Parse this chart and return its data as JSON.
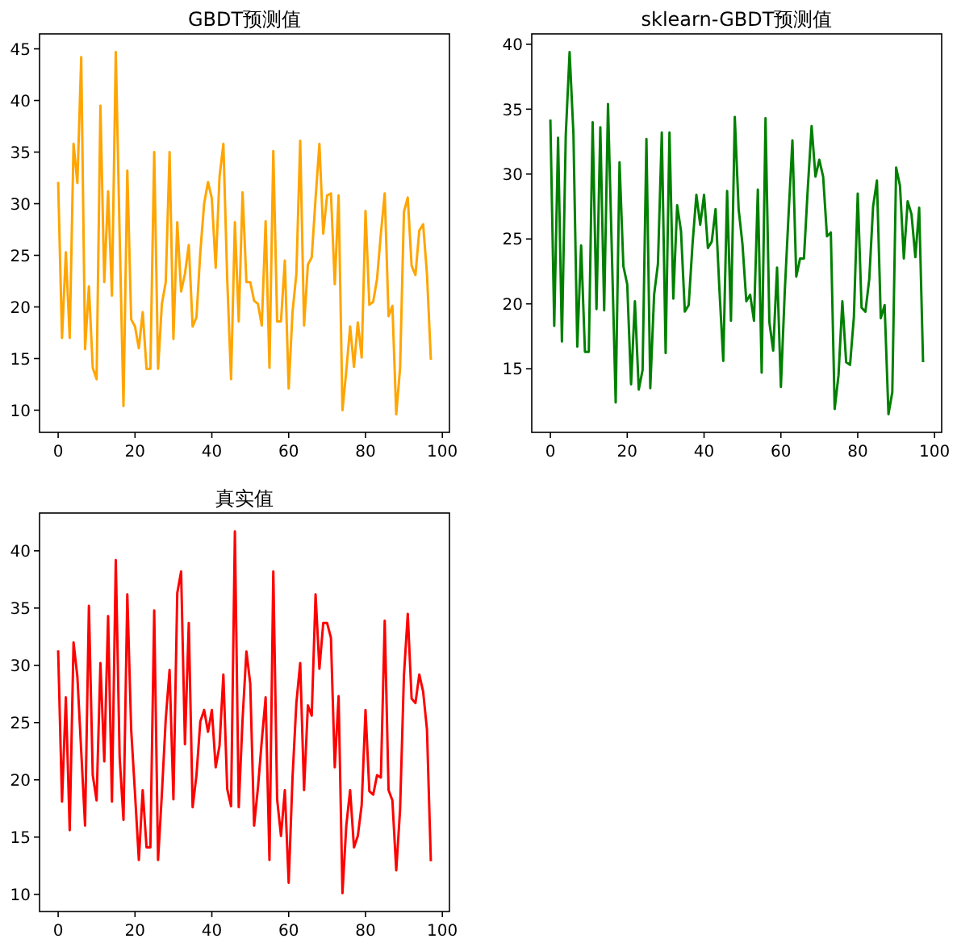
{
  "chart_data": [
    {
      "type": "line",
      "title": "GBDT预测值",
      "x": [
        0,
        1,
        2,
        3,
        4,
        5,
        6,
        7,
        8,
        9,
        10,
        11,
        12,
        13,
        14,
        15,
        16,
        17,
        18,
        19,
        20,
        21,
        22,
        23,
        24,
        25,
        26,
        27,
        28,
        29,
        30,
        31,
        32,
        33,
        34,
        35,
        36,
        37,
        38,
        39,
        40,
        41,
        42,
        43,
        44,
        45,
        46,
        47,
        48,
        49,
        50,
        51,
        52,
        53,
        54,
        55,
        56,
        57,
        58,
        59,
        60,
        61,
        62,
        63,
        64,
        65,
        66,
        67,
        68,
        69,
        70,
        71,
        72,
        73,
        74,
        75,
        76,
        77,
        78,
        79,
        80,
        81,
        82,
        83,
        84,
        85,
        86,
        87,
        88,
        89,
        90,
        91,
        92,
        93,
        94,
        95,
        96,
        97
      ],
      "series": [
        {
          "color": "#ffa500",
          "values": [
            32.0,
            17.0,
            25.3,
            17.0,
            35.8,
            32.0,
            44.2,
            15.9,
            22.0,
            14.1,
            13.0,
            39.5,
            22.4,
            31.2,
            21.1,
            44.7,
            27.0,
            10.4,
            33.2,
            18.8,
            18.1,
            16.0,
            19.5,
            14.0,
            14.0,
            35.0,
            14.0,
            20.3,
            22.4,
            35.0,
            16.9,
            28.2,
            21.5,
            23.2,
            26.0,
            18.1,
            19.0,
            25.3,
            30.0,
            32.1,
            30.5,
            23.8,
            32.6,
            35.8,
            22.7,
            13.0,
            28.2,
            18.6,
            31.1,
            22.4,
            22.4,
            20.6,
            20.3,
            18.2,
            28.3,
            14.1,
            35.1,
            18.6,
            18.6,
            24.5,
            12.1,
            19.5,
            23.2,
            36.1,
            18.2,
            24.1,
            24.8,
            30.5,
            35.8,
            27.1,
            30.8,
            31.0,
            22.2,
            30.8,
            10.0,
            13.8,
            18.1,
            14.2,
            18.5,
            15.1,
            29.3,
            20.2,
            20.5,
            22.7,
            27.1,
            31.0,
            19.1,
            20.1,
            9.6,
            14.1,
            29.2,
            30.6,
            24.0,
            23.1,
            27.4,
            28.0,
            23.2,
            15.0
          ]
        }
      ],
      "xlim": [
        -4.85,
        101.85
      ],
      "ylim": [
        7.85,
        46.45
      ],
      "xticks": [
        0,
        20,
        40,
        60,
        80,
        100
      ],
      "yticks": [
        10,
        15,
        20,
        25,
        30,
        35,
        40,
        45
      ]
    },
    {
      "type": "line",
      "title": "sklearn-GBDT预测值",
      "x": [
        0,
        1,
        2,
        3,
        4,
        5,
        6,
        7,
        8,
        9,
        10,
        11,
        12,
        13,
        14,
        15,
        16,
        17,
        18,
        19,
        20,
        21,
        22,
        23,
        24,
        25,
        26,
        27,
        28,
        29,
        30,
        31,
        32,
        33,
        34,
        35,
        36,
        37,
        38,
        39,
        40,
        41,
        42,
        43,
        44,
        45,
        46,
        47,
        48,
        49,
        50,
        51,
        52,
        53,
        54,
        55,
        56,
        57,
        58,
        59,
        60,
        61,
        62,
        63,
        64,
        65,
        66,
        67,
        68,
        69,
        70,
        71,
        72,
        73,
        74,
        75,
        76,
        77,
        78,
        79,
        80,
        81,
        82,
        83,
        84,
        85,
        86,
        87,
        88,
        89,
        90,
        91,
        92,
        93,
        94,
        95,
        96,
        97
      ],
      "series": [
        {
          "color": "#008000",
          "values": [
            34.1,
            18.3,
            32.8,
            17.1,
            33.0,
            39.4,
            33.1,
            16.7,
            24.5,
            16.3,
            16.3,
            34.0,
            19.6,
            33.6,
            19.5,
            35.4,
            24.0,
            12.4,
            30.9,
            22.9,
            21.5,
            13.8,
            20.2,
            13.4,
            14.9,
            32.7,
            13.5,
            20.7,
            23.1,
            33.2,
            16.2,
            33.2,
            20.4,
            27.6,
            25.6,
            19.4,
            19.9,
            24.6,
            28.4,
            26.1,
            28.4,
            24.3,
            24.8,
            27.3,
            21.1,
            15.6,
            28.7,
            18.7,
            34.4,
            27.3,
            24.6,
            20.2,
            20.7,
            18.7,
            28.8,
            14.7,
            34.3,
            18.6,
            16.4,
            22.8,
            13.6,
            20.9,
            26.9,
            32.6,
            22.1,
            23.5,
            23.5,
            28.9,
            33.7,
            29.8,
            31.1,
            29.8,
            25.2,
            25.5,
            11.9,
            14.5,
            20.2,
            15.5,
            15.3,
            19.0,
            28.5,
            19.7,
            19.4,
            21.9,
            27.5,
            29.5,
            18.9,
            19.9,
            11.5,
            13.2,
            30.5,
            29.1,
            23.5,
            27.9,
            26.9,
            23.6,
            27.4,
            15.6
          ]
        }
      ],
      "xlim": [
        -4.85,
        101.85
      ],
      "ylim": [
        10.1,
        40.8
      ],
      "xticks": [
        0,
        20,
        40,
        60,
        80,
        100
      ],
      "yticks": [
        15,
        20,
        25,
        30,
        35,
        40
      ]
    },
    {
      "type": "line",
      "title": "真实值",
      "x": [
        0,
        1,
        2,
        3,
        4,
        5,
        6,
        7,
        8,
        9,
        10,
        11,
        12,
        13,
        14,
        15,
        16,
        17,
        18,
        19,
        20,
        21,
        22,
        23,
        24,
        25,
        26,
        27,
        28,
        29,
        30,
        31,
        32,
        33,
        34,
        35,
        36,
        37,
        38,
        39,
        40,
        41,
        42,
        43,
        44,
        45,
        46,
        47,
        48,
        49,
        50,
        51,
        52,
        53,
        54,
        55,
        56,
        57,
        58,
        59,
        60,
        61,
        62,
        63,
        64,
        65,
        66,
        67,
        68,
        69,
        70,
        71,
        72,
        73,
        74,
        75,
        76,
        77,
        78,
        79,
        80,
        81,
        82,
        83,
        84,
        85,
        86,
        87,
        88,
        89,
        90,
        91,
        92,
        93,
        94,
        95,
        96,
        97
      ],
      "series": [
        {
          "color": "#ff0000",
          "values": [
            31.2,
            18.1,
            27.2,
            15.6,
            32.0,
            29.0,
            22.5,
            16.0,
            35.2,
            20.4,
            18.2,
            30.2,
            21.6,
            34.3,
            18.1,
            39.2,
            22.0,
            16.5,
            36.2,
            24.4,
            18.8,
            13.0,
            19.1,
            14.1,
            14.1,
            34.8,
            13.0,
            18.8,
            25.3,
            29.6,
            18.3,
            36.3,
            38.2,
            23.1,
            33.7,
            17.6,
            20.4,
            25.1,
            26.1,
            24.2,
            26.1,
            21.1,
            23.0,
            29.2,
            19.2,
            17.7,
            41.7,
            17.6,
            25.3,
            31.2,
            28.4,
            16.0,
            19.3,
            23.4,
            27.2,
            13.0,
            38.2,
            18.3,
            15.1,
            19.1,
            11.0,
            20.2,
            26.7,
            30.2,
            19.1,
            26.5,
            25.6,
            36.2,
            29.7,
            33.7,
            33.7,
            32.4,
            21.1,
            27.3,
            10.1,
            16.0,
            19.1,
            14.1,
            15.1,
            17.8,
            26.1,
            19.0,
            18.7,
            20.4,
            20.2,
            33.9,
            19.1,
            18.2,
            12.1,
            17.4,
            29.1,
            34.5,
            27.1,
            26.7,
            29.2,
            27.7,
            24.4,
            13.0
          ]
        }
      ],
      "xlim": [
        -4.85,
        101.85
      ],
      "ylim": [
        8.5,
        43.3
      ],
      "xticks": [
        0,
        20,
        40,
        60,
        80,
        100
      ],
      "yticks": [
        10,
        15,
        20,
        25,
        30,
        35,
        40
      ]
    }
  ]
}
